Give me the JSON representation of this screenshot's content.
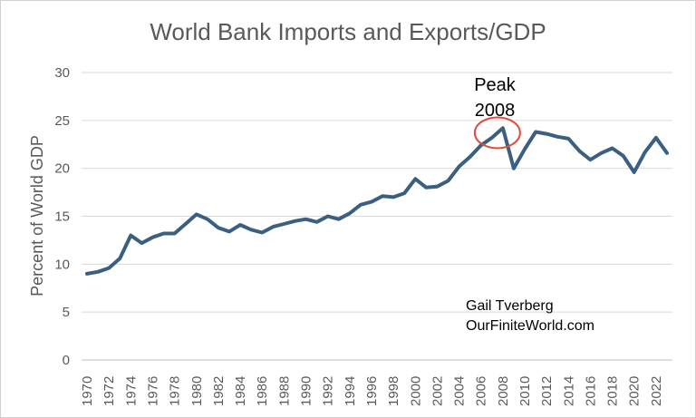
{
  "chart_data": {
    "type": "line",
    "title": "World Bank Imports and Exports/GDP",
    "ylabel": "Percent of World GDP",
    "xlabel": "",
    "ylim": [
      0,
      30
    ],
    "yticks": [
      0,
      5,
      10,
      15,
      20,
      25,
      30
    ],
    "xticks": [
      "1970",
      "1972",
      "1974",
      "1976",
      "1978",
      "1980",
      "1982",
      "1984",
      "1986",
      "1988",
      "1990",
      "1992",
      "1994",
      "1996",
      "1998",
      "2000",
      "2002",
      "2004",
      "2006",
      "2008",
      "2010",
      "2012",
      "2014",
      "2016",
      "2018",
      "2020",
      "2022"
    ],
    "grid": true,
    "series": [
      {
        "color": "#3a5f80",
        "x": [
          1970,
          1971,
          1972,
          1973,
          1974,
          1975,
          1976,
          1977,
          1978,
          1979,
          1980,
          1981,
          1982,
          1983,
          1984,
          1985,
          1986,
          1987,
          1988,
          1989,
          1990,
          1991,
          1992,
          1993,
          1994,
          1995,
          1996,
          1997,
          1998,
          1999,
          2000,
          2001,
          2002,
          2003,
          2004,
          2005,
          2006,
          2007,
          2008,
          2009,
          2010,
          2011,
          2012,
          2013,
          2014,
          2015,
          2016,
          2017,
          2018,
          2019,
          2020,
          2021,
          2022,
          2023
        ],
        "values": [
          9.0,
          9.2,
          9.6,
          10.6,
          13.0,
          12.2,
          12.8,
          13.2,
          13.2,
          14.2,
          15.2,
          14.7,
          13.8,
          13.4,
          14.1,
          13.6,
          13.3,
          13.9,
          14.2,
          14.5,
          14.7,
          14.4,
          15.0,
          14.7,
          15.3,
          16.2,
          16.5,
          17.1,
          17.0,
          17.4,
          18.9,
          18.0,
          18.1,
          18.7,
          20.2,
          21.2,
          22.4,
          23.2,
          24.2,
          20.0,
          22.0,
          23.8,
          23.6,
          23.3,
          23.1,
          21.8,
          20.9,
          21.6,
          22.1,
          21.3,
          19.6,
          21.7,
          23.2,
          21.6
        ]
      }
    ],
    "annotations": {
      "peak_line1": "Peak",
      "peak_line2": "2008",
      "peak_x": 2008,
      "peak_y": 23.9,
      "circle_color": "#e04c3c",
      "credit_line1": "Gail Tverberg",
      "credit_line2": "OurFiniteWorld.com"
    }
  }
}
